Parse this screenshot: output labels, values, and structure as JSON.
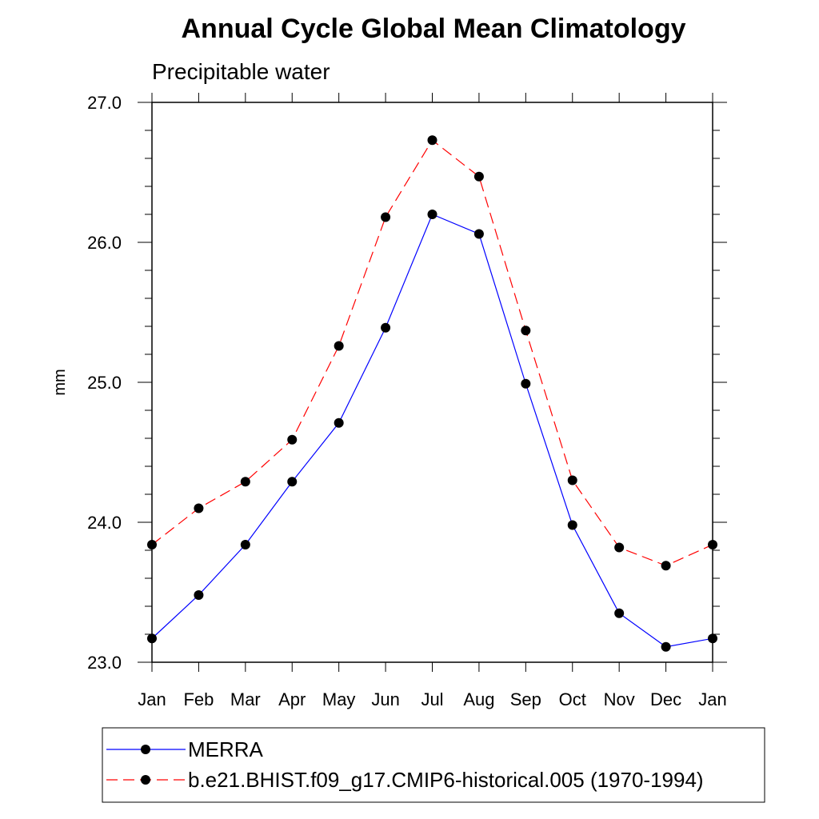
{
  "chart_data": {
    "type": "line",
    "title": "Annual Cycle Global Mean Climatology",
    "subtitle": "Precipitable water",
    "xlabel": "",
    "ylabel": "mm",
    "categories": [
      "Jan",
      "Feb",
      "Mar",
      "Apr",
      "May",
      "Jun",
      "Jul",
      "Aug",
      "Sep",
      "Oct",
      "Nov",
      "Dec",
      "Jan"
    ],
    "ylim": [
      23.0,
      27.0
    ],
    "yticks": [
      "23.0",
      "24.0",
      "25.0",
      "26.0",
      "27.0"
    ],
    "grid": false,
    "legend_position": "bottom",
    "series": [
      {
        "name": "MERRA",
        "color": "#0000ff",
        "line_style": "solid",
        "values": [
          23.17,
          23.48,
          23.84,
          24.29,
          24.71,
          25.39,
          26.2,
          26.06,
          24.99,
          23.98,
          23.35,
          23.11,
          23.17
        ]
      },
      {
        "name": "b.e21.BHIST.f09_g17.CMIP6-historical.005 (1970-1994)",
        "color": "#ff0000",
        "line_style": "dashed",
        "values": [
          23.84,
          24.1,
          24.29,
          24.59,
          25.26,
          26.18,
          26.73,
          26.47,
          25.37,
          24.3,
          23.82,
          23.69,
          23.84
        ]
      }
    ]
  }
}
